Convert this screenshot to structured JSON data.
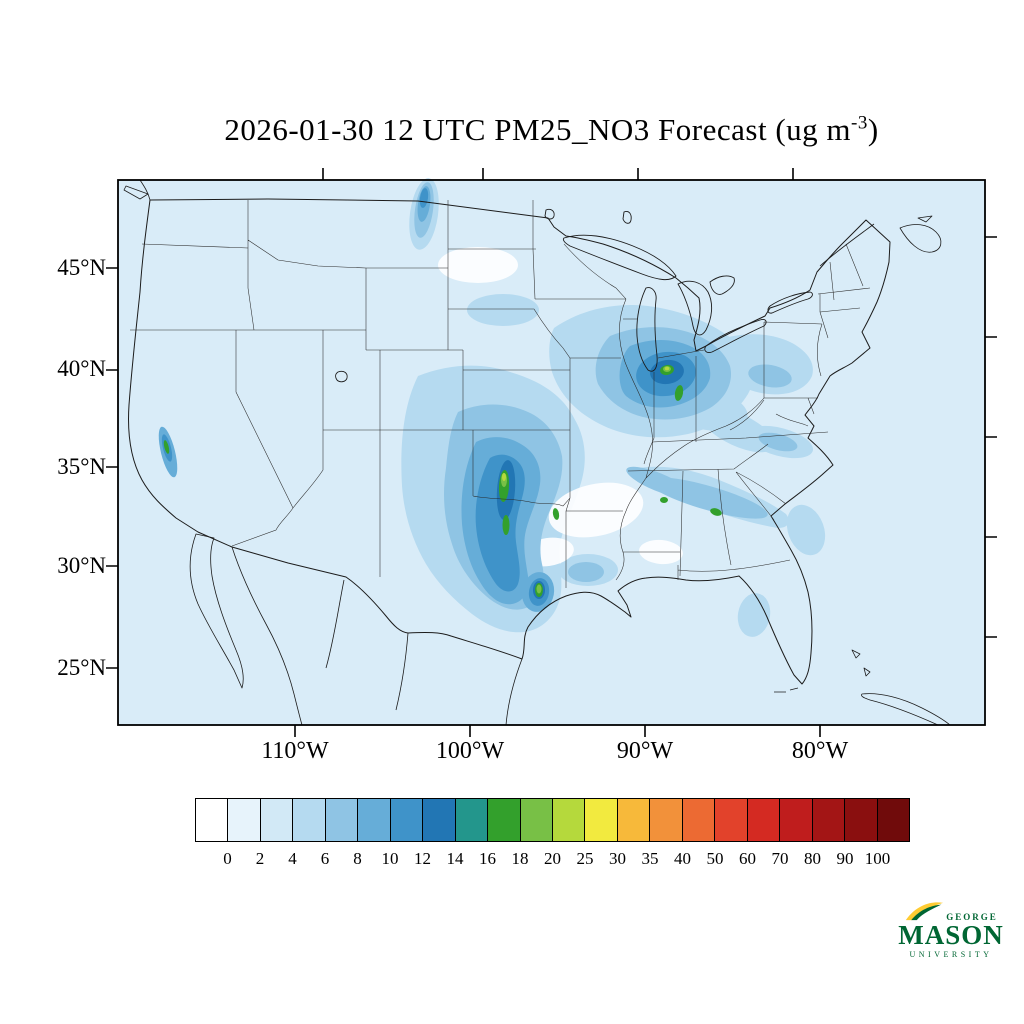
{
  "title": {
    "main": "2026-01-30 12 UTC PM25_NO3 Forecast (ug m",
    "sup": "-3",
    "close": ")"
  },
  "axes": {
    "lat_labels": [
      "45°N",
      "40°N",
      "35°N",
      "30°N",
      "25°N"
    ],
    "lon_labels": [
      "110°W",
      "100°W",
      "90°W",
      "80°W"
    ]
  },
  "colorbar": {
    "labels": [
      "0",
      "2",
      "4",
      "6",
      "8",
      "10",
      "12",
      "14",
      "16",
      "18",
      "20",
      "25",
      "30",
      "35",
      "40",
      "50",
      "60",
      "70",
      "80",
      "90",
      "100"
    ],
    "colors": [
      "#ffffff",
      "#e7f3fb",
      "#d2e9f6",
      "#b5daf0",
      "#8fc4e4",
      "#66add8",
      "#3f93c9",
      "#2276b4",
      "#23968c",
      "#33a02c",
      "#78c046",
      "#b5d93c",
      "#f2ea3f",
      "#f7b93a",
      "#f2913a",
      "#ec6a33",
      "#e2422b",
      "#d42a22",
      "#bf1d1d",
      "#a31515",
      "#8a0f0f",
      "#700b0b"
    ]
  },
  "logo": {
    "george": "GEORGE",
    "mason": "MASON",
    "university": "UNIVERSITY",
    "green": "#006633",
    "gold": "#ffcc33"
  },
  "chart_data": {
    "type": "heatmap",
    "title": "2026-01-30 12 UTC PM25_NO3 Forecast (ug m-3)",
    "variable": "PM25_NO3",
    "units": "ug m-3",
    "forecast_time": "2026-01-30 12 UTC",
    "region": "Continental United States with southern Canada, northern Mexico, Gulf of Mexico",
    "x_ticks": [
      "110°W",
      "100°W",
      "90°W",
      "80°W"
    ],
    "y_ticks": [
      "45°N",
      "40°N",
      "35°N",
      "30°N",
      "25°N"
    ],
    "colorbar_levels": [
      0,
      2,
      4,
      6,
      8,
      10,
      12,
      14,
      16,
      18,
      20,
      25,
      30,
      35,
      40,
      50,
      60,
      70,
      80,
      90,
      100
    ],
    "legend_position": "bottom",
    "grid": false,
    "background_field_value": "approximately 2-4 over most of the domain and oceans",
    "hotspots": [
      {
        "region": "Central Texas / Oklahoma / southern Kansas plume",
        "approx_peak": 25,
        "note": "broad 8-14 plume with green cores 16-20 and a small yellow-green spot near 25"
      },
      {
        "region": "Texas Gulf Coast (Houston/Victoria area)",
        "approx_peak": 20,
        "note": "green core embedded in dark blue"
      },
      {
        "region": "Indiana / western Ohio (Midwest)",
        "approx_peak": 25,
        "note": "dark blue area with green cores and small yellow-green maximum"
      },
      {
        "region": "Southeast band across Alabama/Georgia",
        "approx_peak": 18,
        "note": "narrow light-blue streaks with small green spots"
      },
      {
        "region": "California Central Valley",
        "approx_peak": 16,
        "note": "narrow north-south streak with green core"
      },
      {
        "region": "Canadian prairie streak north of Montana",
        "approx_peak": 12,
        "note": "small elongated blue streak"
      },
      {
        "region": "Missouri / Arkansas (Ozarks)",
        "approx_peak": 0,
        "note": "white minimum hole below 2"
      }
    ]
  }
}
